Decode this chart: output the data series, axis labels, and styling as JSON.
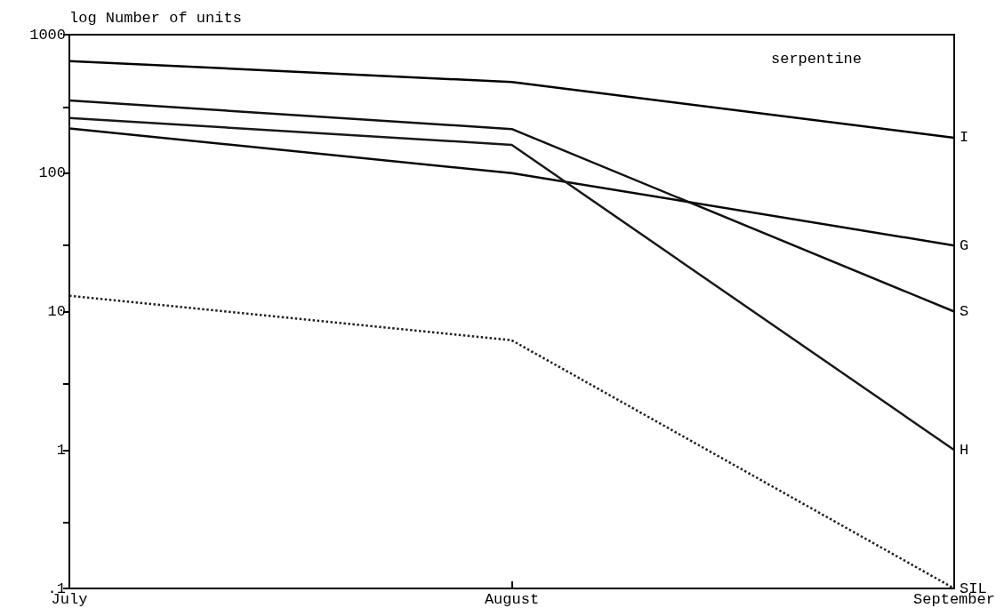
{
  "chart_data": {
    "type": "line",
    "ylabel": "log Number of units",
    "annotations": [
      "serpentine"
    ],
    "categories": [
      "July",
      "August",
      "September"
    ],
    "series": [
      {
        "name": "I",
        "color": "#000000",
        "values": [
          645,
          455,
          180
        ]
      },
      {
        "name": "G",
        "color": "#080808",
        "values": [
          210,
          100,
          30
        ]
      },
      {
        "name": "S",
        "color": "#101010",
        "values": [
          335,
          208,
          10
        ]
      },
      {
        "name": "H",
        "color": "#181818",
        "values": [
          250,
          160,
          1
        ]
      },
      {
        "name": "SIL",
        "color": "#202020",
        "values": [
          13,
          6.2,
          0.1
        ],
        "line_style": "dotted"
      }
    ],
    "log": "y",
    "ylim": [
      0.1,
      1000
    ],
    "yticks": [
      {
        "value": 0.1,
        "label": ".1"
      },
      {
        "value": 0.3,
        "label": null
      },
      1,
      {
        "value": 3,
        "label": null
      },
      10,
      {
        "value": 30,
        "label": null
      },
      100,
      {
        "value": 300,
        "label": null
      },
      1000
    ],
    "grid": false,
    "legend": false,
    "marker": "none",
    "line_style": "solid"
  }
}
